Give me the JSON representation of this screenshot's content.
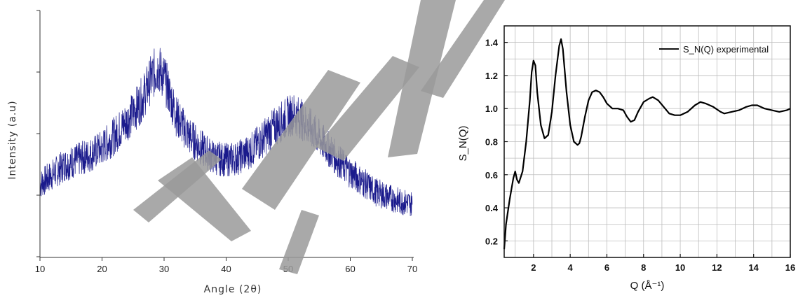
{
  "chart_data": [
    {
      "type": "line",
      "title": "",
      "xlabel": "Angle (2θ)",
      "ylabel": "Intensity (a.u)",
      "xlim": [
        10,
        70
      ],
      "x_ticks": [
        "10",
        "20",
        "30",
        "40",
        "50",
        "60",
        "70"
      ],
      "y_ticks_labeled": false,
      "grid": false,
      "color": "#1a1a8c",
      "series": [
        {
          "x": [
            10,
            12,
            14,
            16,
            18,
            20,
            22,
            24,
            26,
            27,
            28,
            29,
            30,
            31,
            32,
            34,
            36,
            38,
            40,
            42,
            44,
            46,
            48,
            50,
            51,
            52,
            54,
            56,
            58,
            60,
            62,
            64,
            66,
            68,
            70
          ],
          "y": [
            0.3,
            0.34,
            0.38,
            0.4,
            0.42,
            0.45,
            0.5,
            0.56,
            0.63,
            0.68,
            0.74,
            0.78,
            0.74,
            0.66,
            0.58,
            0.5,
            0.45,
            0.41,
            0.4,
            0.41,
            0.44,
            0.49,
            0.54,
            0.58,
            0.59,
            0.57,
            0.52,
            0.46,
            0.4,
            0.35,
            0.31,
            0.27,
            0.25,
            0.23,
            0.22
          ]
        }
      ]
    },
    {
      "type": "line",
      "title": "",
      "xlabel": "Q (Å⁻¹)",
      "ylabel": "S_N(Q)",
      "xlim": [
        0.4,
        16
      ],
      "ylim": [
        0.1,
        1.5
      ],
      "x_ticks": [
        "2",
        "4",
        "6",
        "8",
        "10",
        "12",
        "14",
        "16"
      ],
      "y_ticks": [
        "0.2",
        "0.4",
        "0.6",
        "0.8",
        "1.0",
        "1.2",
        "1.4"
      ],
      "grid": true,
      "legend": {
        "position": "top-right",
        "label": "S_N(Q) experimental"
      },
      "series": [
        {
          "name": "S_N(Q) experimental",
          "x": [
            0.4,
            0.5,
            0.7,
            0.9,
            1.0,
            1.1,
            1.2,
            1.4,
            1.6,
            1.8,
            1.9,
            2.0,
            2.1,
            2.2,
            2.4,
            2.6,
            2.8,
            3.0,
            3.2,
            3.4,
            3.5,
            3.6,
            3.8,
            4.0,
            4.2,
            4.4,
            4.5,
            4.6,
            4.8,
            5.0,
            5.2,
            5.4,
            5.6,
            5.8,
            6.0,
            6.3,
            6.6,
            6.9,
            7.1,
            7.3,
            7.5,
            7.7,
            8.0,
            8.3,
            8.5,
            8.8,
            9.1,
            9.4,
            9.7,
            10.0,
            10.4,
            10.8,
            11.1,
            11.4,
            11.8,
            12.2,
            12.4,
            12.8,
            13.2,
            13.6,
            13.9,
            14.2,
            14.6,
            15.0,
            15.4,
            15.8,
            16.0
          ],
          "y": [
            0.15,
            0.3,
            0.45,
            0.58,
            0.62,
            0.57,
            0.55,
            0.62,
            0.8,
            1.05,
            1.22,
            1.29,
            1.26,
            1.1,
            0.9,
            0.82,
            0.84,
            0.98,
            1.2,
            1.38,
            1.42,
            1.36,
            1.1,
            0.9,
            0.8,
            0.78,
            0.79,
            0.83,
            0.95,
            1.05,
            1.1,
            1.11,
            1.1,
            1.07,
            1.03,
            1.0,
            1.0,
            0.99,
            0.95,
            0.92,
            0.93,
            0.98,
            1.04,
            1.06,
            1.07,
            1.05,
            1.01,
            0.97,
            0.96,
            0.96,
            0.98,
            1.02,
            1.04,
            1.03,
            1.01,
            0.98,
            0.97,
            0.98,
            0.99,
            1.01,
            1.02,
            1.02,
            1.0,
            0.99,
            0.98,
            0.99,
            1.0
          ]
        }
      ]
    }
  ]
}
